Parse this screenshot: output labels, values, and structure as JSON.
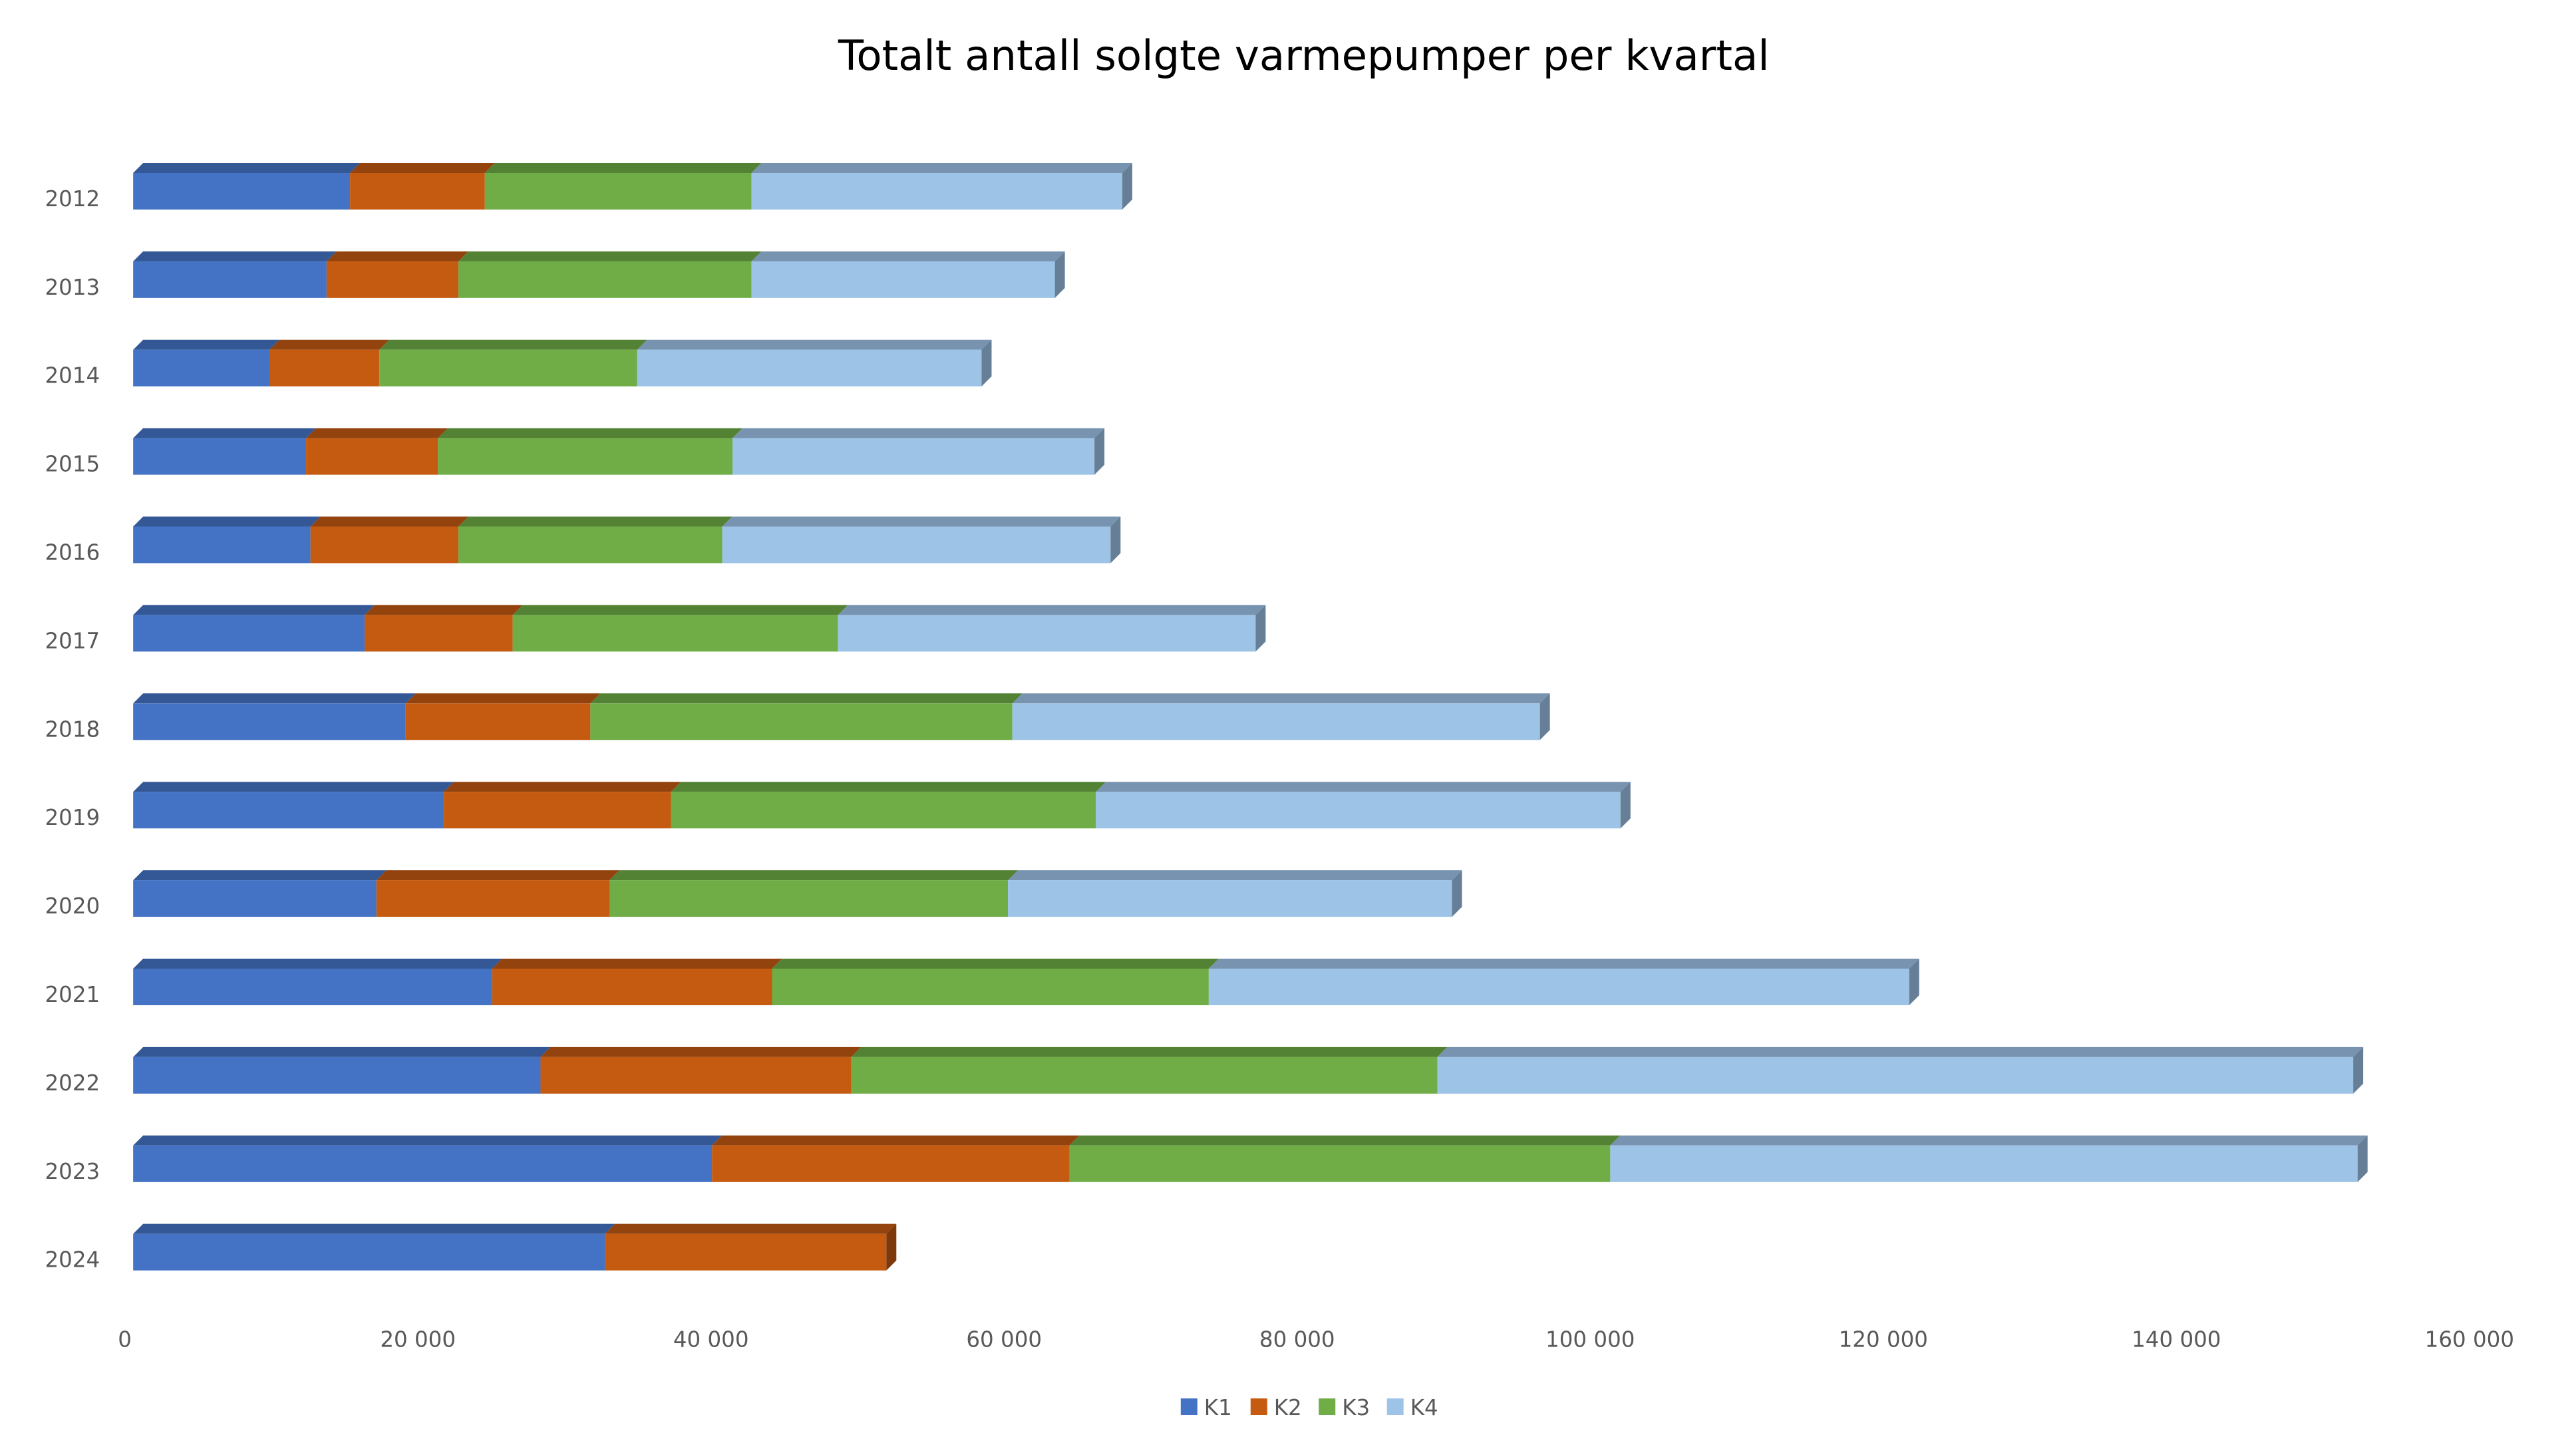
{
  "chart_data": {
    "type": "bar",
    "orientation": "horizontal",
    "stacked": true,
    "style": "3d",
    "title": "Totalt antall solgte varmepumper per kvartal",
    "xlabel": "",
    "ylabel": "",
    "xlim": [
      0,
      160000
    ],
    "x_ticks": [
      "0",
      "20 000",
      "40 000",
      "60 000",
      "80 000",
      "100 000",
      "120 000",
      "140 000",
      "160 000"
    ],
    "x_tick_values": [
      0,
      20000,
      40000,
      60000,
      80000,
      100000,
      120000,
      140000,
      160000
    ],
    "grid": false,
    "legend_position": "bottom",
    "categories": [
      "2012",
      "2013",
      "2014",
      "2015",
      "2016",
      "2017",
      "2018",
      "2019",
      "2020",
      "2021",
      "2022",
      "2023",
      "2024"
    ],
    "series": [
      {
        "name": "K1",
        "color": "#4472C4",
        "top_color": "#345896",
        "values": [
          14800,
          13200,
          9300,
          11800,
          12100,
          15800,
          18600,
          21200,
          16600,
          24500,
          27800,
          39500,
          32200
        ]
      },
      {
        "name": "K2",
        "color": "#C55A11",
        "top_color": "#93430D",
        "values": [
          9200,
          9000,
          7500,
          9000,
          10100,
          10100,
          12600,
          15500,
          15900,
          19100,
          21200,
          24400,
          19200
        ]
      },
      {
        "name": "K3",
        "color": "#70AD47",
        "top_color": "#548235",
        "values": [
          18200,
          20000,
          17600,
          20100,
          18000,
          22200,
          28800,
          29000,
          27200,
          29800,
          40000,
          36900,
          null
        ]
      },
      {
        "name": "K4",
        "color": "#9DC3E6",
        "top_color": "#7893B0",
        "values": [
          25300,
          20700,
          23500,
          24700,
          26500,
          28500,
          36000,
          35800,
          30300,
          47800,
          62500,
          51000,
          null
        ]
      }
    ]
  }
}
